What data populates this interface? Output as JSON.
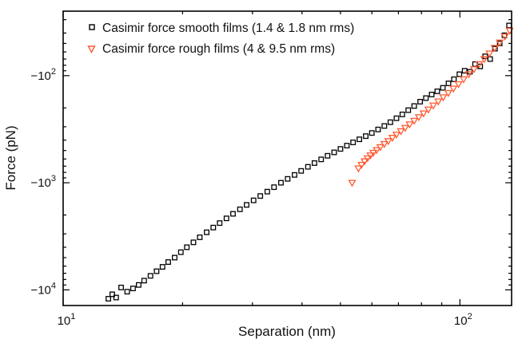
{
  "chart_data": {
    "type": "scatter",
    "title": "",
    "xlabel": "Separation (nm)",
    "ylabel": "Force (pN)",
    "xscale": "log",
    "yscale": "log (negative values, magnitude increases downward)",
    "xlim": [
      10,
      135
    ],
    "ylim": [
      -25,
      -14000
    ],
    "x_ticks": [
      {
        "value": 10,
        "base": "10",
        "exp": "1",
        "neg": ""
      },
      {
        "value": 100,
        "base": "10",
        "exp": "2",
        "neg": ""
      }
    ],
    "y_ticks": [
      {
        "value": -100,
        "neg": "−",
        "base": "10",
        "exp": "2"
      },
      {
        "value": -1000,
        "neg": "−",
        "base": "10",
        "exp": "3"
      },
      {
        "value": -10000,
        "neg": "−",
        "base": "10",
        "exp": "4"
      }
    ],
    "grid": false,
    "legend_position": "top-left",
    "series": [
      {
        "name": "Casimir force smooth films (1.4 & 1.8 nm rms)",
        "marker": "square",
        "color": "#000000",
        "points": [
          [
            13.0,
            -12100
          ],
          [
            13.3,
            -11000
          ],
          [
            13.6,
            -11800
          ],
          [
            14.0,
            -9500
          ],
          [
            14.5,
            -10400
          ],
          [
            15.0,
            -9700
          ],
          [
            15.5,
            -9000
          ],
          [
            16.0,
            -8200
          ],
          [
            16.6,
            -7400
          ],
          [
            17.2,
            -6700
          ],
          [
            17.8,
            -6100
          ],
          [
            18.4,
            -5500
          ],
          [
            19.1,
            -5000
          ],
          [
            19.8,
            -4450
          ],
          [
            20.5,
            -4000
          ],
          [
            21.3,
            -3600
          ],
          [
            22.1,
            -3230
          ],
          [
            23.0,
            -2900
          ],
          [
            23.9,
            -2620
          ],
          [
            24.8,
            -2380
          ],
          [
            25.8,
            -2150
          ],
          [
            26.8,
            -1950
          ],
          [
            27.9,
            -1770
          ],
          [
            29.0,
            -1610
          ],
          [
            30.2,
            -1460
          ],
          [
            31.4,
            -1330
          ],
          [
            32.7,
            -1210
          ],
          [
            34.0,
            -1100
          ],
          [
            35.4,
            -1000
          ],
          [
            36.8,
            -920
          ],
          [
            38.3,
            -845
          ],
          [
            39.8,
            -775
          ],
          [
            41.4,
            -710
          ],
          [
            43.0,
            -655
          ],
          [
            44.7,
            -605
          ],
          [
            46.4,
            -560
          ],
          [
            48.2,
            -520
          ],
          [
            50.0,
            -483
          ],
          [
            51.9,
            -450
          ],
          [
            53.8,
            -420
          ],
          [
            55.8,
            -393
          ],
          [
            57.9,
            -367
          ],
          [
            60.0,
            -343
          ],
          [
            62.2,
            -318
          ],
          [
            64.5,
            -295
          ],
          [
            66.8,
            -272
          ],
          [
            69.2,
            -250
          ],
          [
            71.6,
            -230
          ],
          [
            74.1,
            -210
          ],
          [
            76.7,
            -192
          ],
          [
            79.4,
            -175
          ],
          [
            82.1,
            -162
          ],
          [
            84.9,
            -150
          ],
          [
            87.7,
            -140
          ],
          [
            90.6,
            -130
          ],
          [
            93.6,
            -118
          ],
          [
            96.6,
            -108
          ],
          [
            99.7,
            -97
          ],
          [
            102.8,
            -90
          ],
          [
            106.0,
            -92
          ],
          [
            109.2,
            -78
          ],
          [
            112.5,
            -82
          ],
          [
            115.8,
            -66
          ],
          [
            119.2,
            -70
          ],
          [
            122.6,
            -56
          ],
          [
            126.0,
            -50
          ],
          [
            129.5,
            -42
          ],
          [
            133.0,
            -34
          ]
        ]
      },
      {
        "name": "Casimir force rough films (4 & 9.5 nm rms)",
        "marker": "triangle-down",
        "color": "#ff5a32",
        "points": [
          [
            53.5,
            -1000
          ],
          [
            55.5,
            -735
          ],
          [
            56.5,
            -680
          ],
          [
            57.5,
            -630
          ],
          [
            58.5,
            -590
          ],
          [
            59.5,
            -555
          ],
          [
            60.5,
            -525
          ],
          [
            61.7,
            -495
          ],
          [
            63.0,
            -465
          ],
          [
            64.5,
            -435
          ],
          [
            66.0,
            -408
          ],
          [
            67.6,
            -380
          ],
          [
            69.2,
            -355
          ],
          [
            71.0,
            -330
          ],
          [
            72.8,
            -307
          ],
          [
            74.7,
            -285
          ],
          [
            76.7,
            -264
          ],
          [
            78.8,
            -244
          ],
          [
            81.0,
            -225
          ],
          [
            83.3,
            -207
          ],
          [
            85.7,
            -190
          ],
          [
            88.2,
            -174
          ],
          [
            90.8,
            -159
          ],
          [
            93.5,
            -145
          ],
          [
            96.3,
            -132
          ],
          [
            99.2,
            -120
          ],
          [
            102.2,
            -108
          ],
          [
            105.3,
            -97
          ],
          [
            108.5,
            -87
          ],
          [
            111.8,
            -78
          ],
          [
            115.2,
            -70
          ],
          [
            118.7,
            -62
          ],
          [
            122.3,
            -55
          ],
          [
            126.0,
            -49
          ],
          [
            129.8,
            -43
          ],
          [
            133.5,
            -38
          ]
        ]
      }
    ]
  }
}
